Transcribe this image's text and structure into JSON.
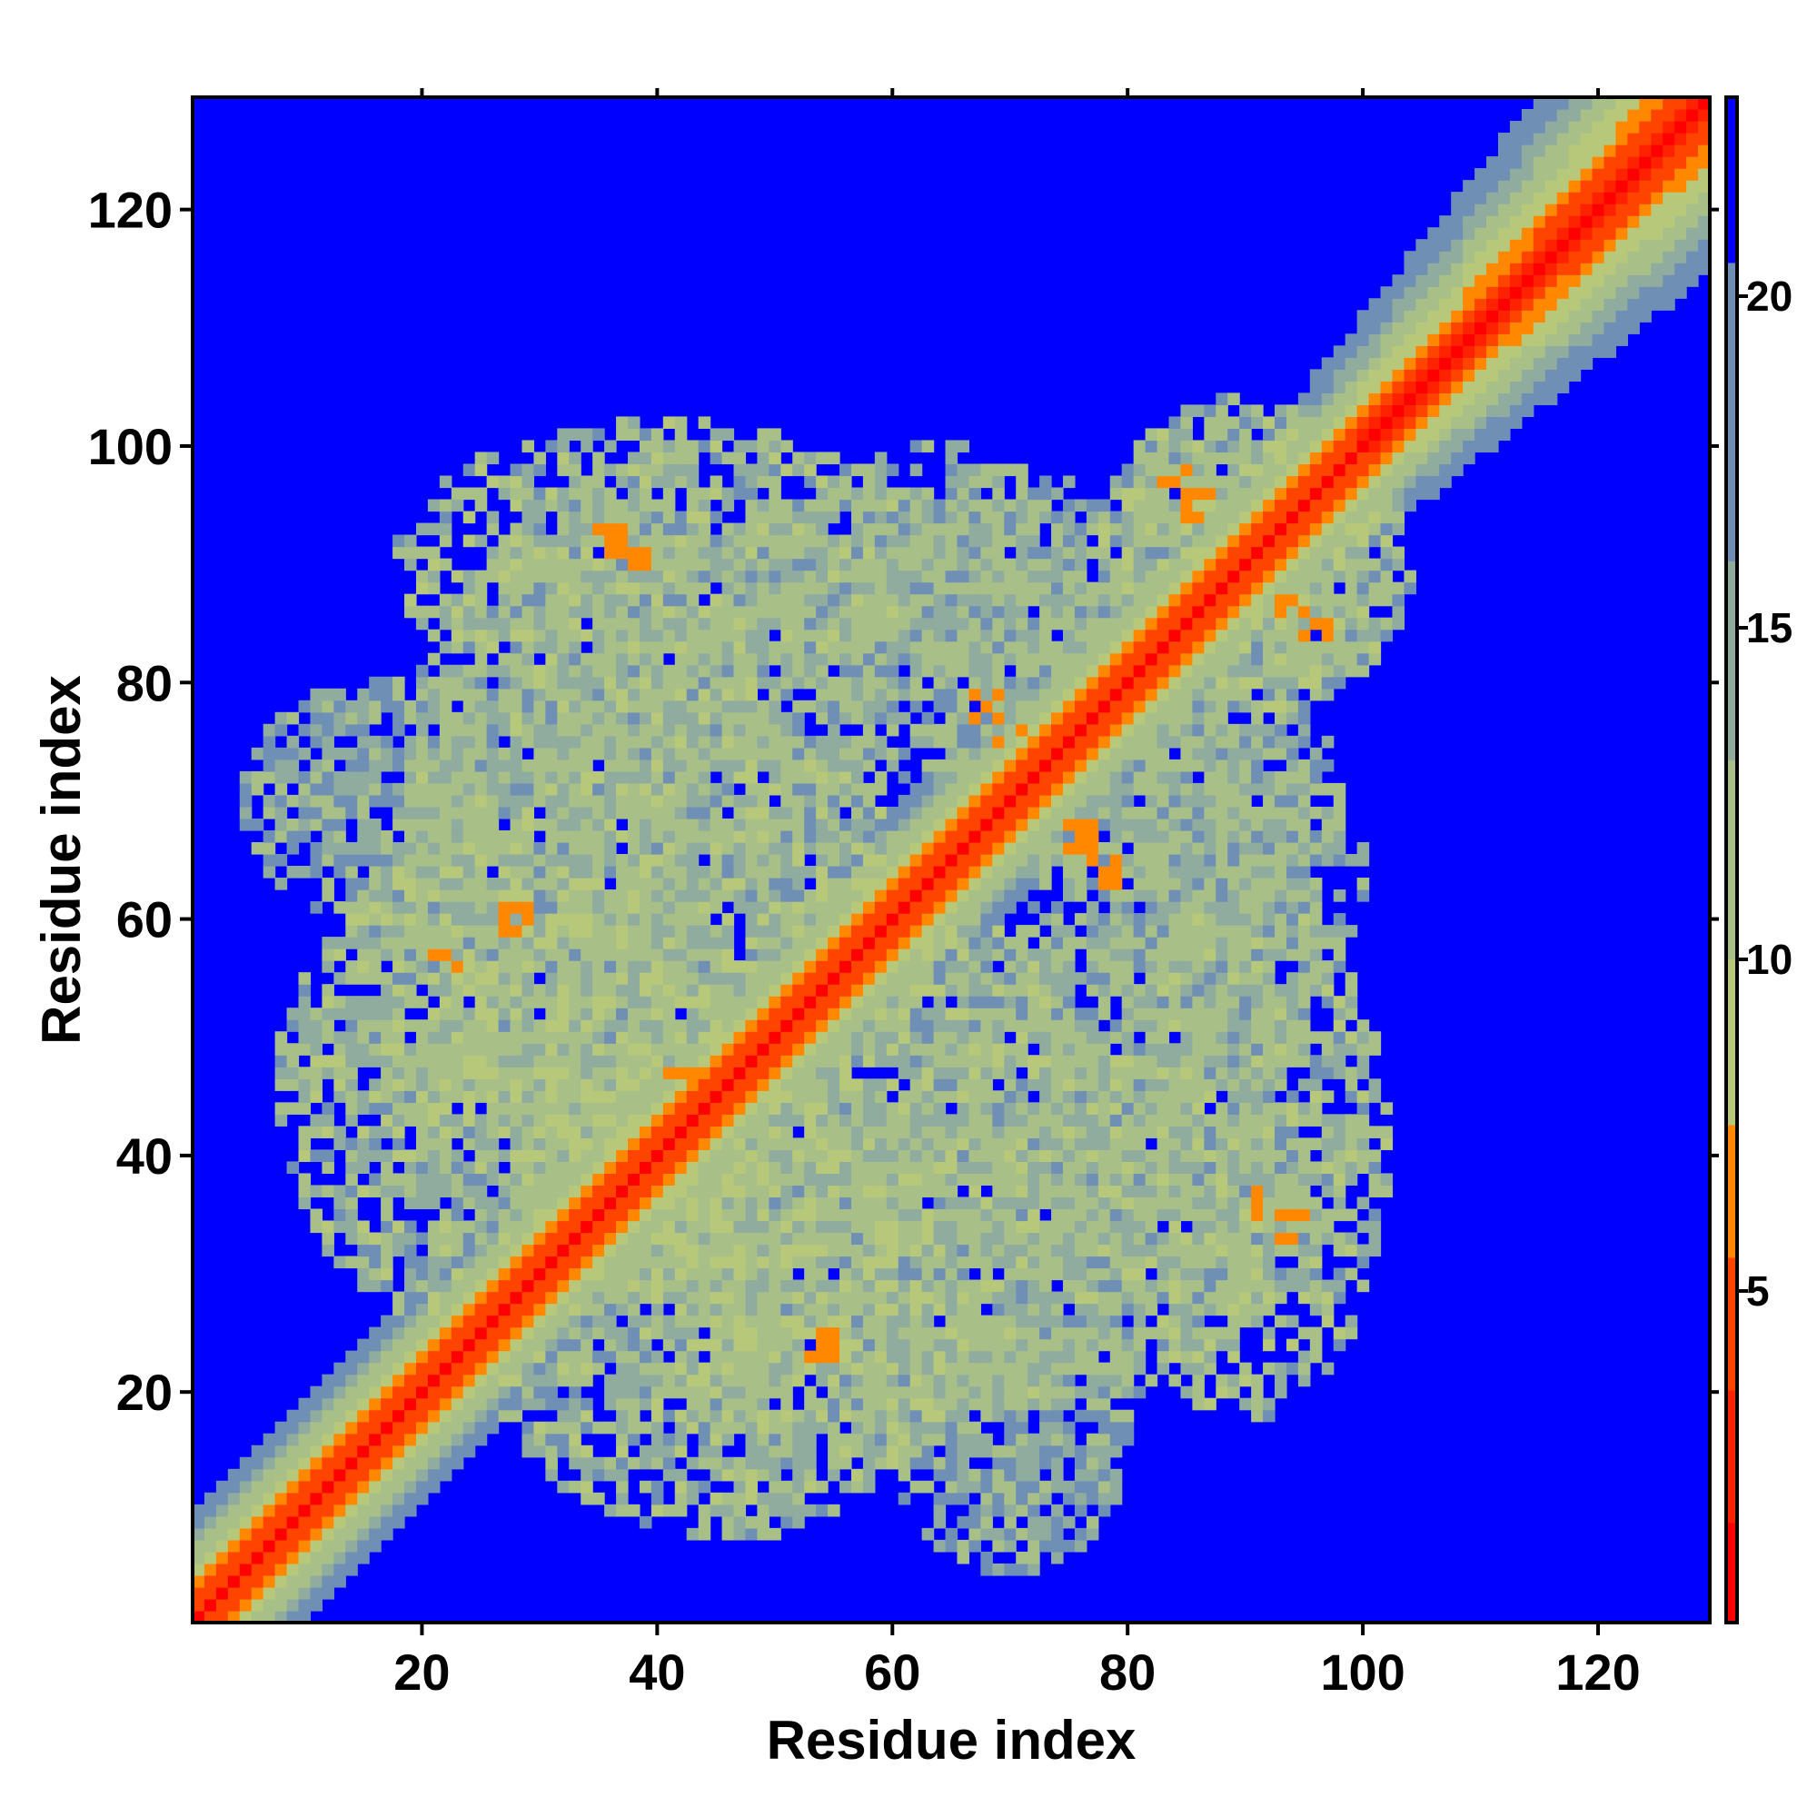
{
  "chart_data": {
    "type": "heatmap",
    "title": "",
    "xlabel": "Residue index",
    "ylabel": "Residue index",
    "n_residues": 129,
    "xlim": [
      1,
      129
    ],
    "ylim": [
      1,
      129
    ],
    "x_ticks": [
      20,
      40,
      60,
      80,
      100,
      120
    ],
    "y_ticks": [
      20,
      40,
      60,
      80,
      100,
      120
    ],
    "colorbar": {
      "range": [
        0,
        23
      ],
      "ticks": [
        5,
        10,
        15,
        20
      ],
      "levels": [
        {
          "max": 1.5,
          "color": "#ff0000"
        },
        {
          "max": 3.5,
          "color": "#ff2200"
        },
        {
          "max": 5.5,
          "color": "#ff4400"
        },
        {
          "max": 7.5,
          "color": "#ff8800"
        },
        {
          "max": 10.0,
          "color": "#b8c87a"
        },
        {
          "max": 13.0,
          "color": "#a8c088"
        },
        {
          "max": 16.0,
          "color": "#8fac9e"
        },
        {
          "max": 20.5,
          "color": "#6f8fb5"
        },
        {
          "max": 23.0,
          "color": "#0000ff"
        }
      ]
    },
    "background_color": "#0000ff",
    "diagonal_profile": [
      {
        "d": 0,
        "value": 1.0
      },
      {
        "d": 1,
        "value": 3.8
      },
      {
        "d": 2,
        "value": 5.5
      },
      {
        "d": 3,
        "value": 7.5
      },
      {
        "d": 4,
        "value": 9.0
      },
      {
        "d": 5,
        "value": 11.0
      },
      {
        "d": 6,
        "value": 13.0
      },
      {
        "d": 7,
        "value": 15.0
      },
      {
        "d": 8,
        "value": 17.0
      },
      {
        "d": 9,
        "value": 19.0
      },
      {
        "d": 10,
        "value": 20.5
      }
    ],
    "contact_regions": [
      {
        "x": [
          20,
          60
        ],
        "y": [
          60,
          95
        ],
        "value": 14
      },
      {
        "x": [
          35,
          80
        ],
        "y": [
          15,
          62
        ],
        "value": 13
      },
      {
        "x": [
          58,
          82
        ],
        "y": [
          78,
          98
        ],
        "value": 14
      },
      {
        "x": [
          80,
          104
        ],
        "y": [
          78,
          103
        ],
        "value": 13
      },
      {
        "x": [
          72,
          100
        ],
        "y": [
          50,
          77
        ],
        "value": 14
      },
      {
        "x": [
          78,
          102
        ],
        "y": [
          18,
          62
        ],
        "value": 13
      },
      {
        "x": [
          8,
          45
        ],
        "y": [
          25,
          66
        ],
        "value": 13
      },
      {
        "x": [
          60,
          80
        ],
        "y": [
          5,
          28
        ],
        "value": 15
      }
    ],
    "hotspots": [
      {
        "x": 36,
        "y": 92,
        "value": 6
      },
      {
        "x": 38,
        "y": 90,
        "value": 6
      },
      {
        "x": 68,
        "y": 78,
        "value": 6
      },
      {
        "x": 70,
        "y": 75,
        "value": 6
      },
      {
        "x": 84,
        "y": 97,
        "value": 6
      },
      {
        "x": 86,
        "y": 95,
        "value": 6
      },
      {
        "x": 94,
        "y": 86,
        "value": 6
      },
      {
        "x": 96,
        "y": 84,
        "value": 6
      },
      {
        "x": 76,
        "y": 67,
        "value": 6
      },
      {
        "x": 78,
        "y": 64,
        "value": 6
      },
      {
        "x": 92,
        "y": 36,
        "value": 6
      },
      {
        "x": 94,
        "y": 34,
        "value": 6
      },
      {
        "x": 54,
        "y": 24,
        "value": 6
      },
      {
        "x": 42,
        "y": 46,
        "value": 6
      },
      {
        "x": 28,
        "y": 60,
        "value": 6
      },
      {
        "x": 22,
        "y": 56,
        "value": 6
      }
    ]
  }
}
